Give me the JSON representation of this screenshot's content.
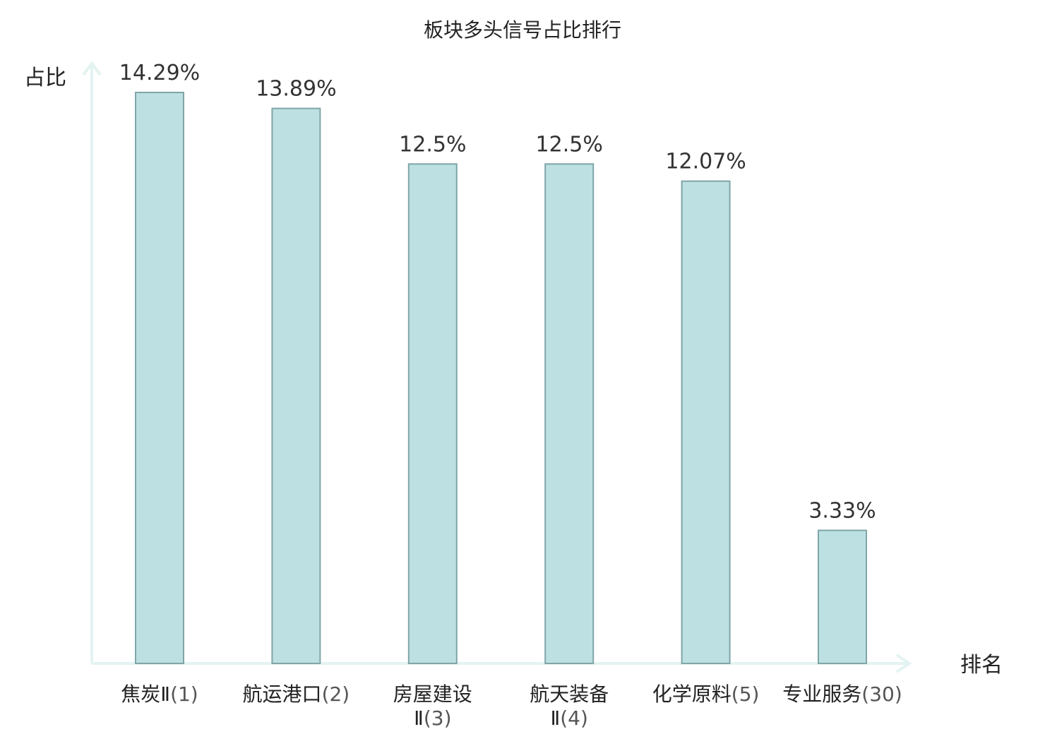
{
  "chart_data": {
    "type": "bar",
    "title": "板块多头信号占比排行",
    "ylabel": "占比",
    "xlabel": "排名",
    "ylim": [
      0,
      14.29
    ],
    "grid": false,
    "categories": [
      {
        "name_lines": [
          "焦炭Ⅱ"
        ],
        "rank": "(1)",
        "highlight": false
      },
      {
        "name_lines": [
          "航运港口"
        ],
        "rank": "(2)",
        "highlight": false
      },
      {
        "name_lines": [
          "房屋建设",
          "Ⅱ"
        ],
        "rank": "(3)",
        "highlight": false
      },
      {
        "name_lines": [
          "航天装备",
          "Ⅱ"
        ],
        "rank": "(4)",
        "highlight": false
      },
      {
        "name_lines": [
          "化学原料"
        ],
        "rank": "(5)",
        "highlight": false
      },
      {
        "name_lines": [
          "专业服务"
        ],
        "rank": "(30)",
        "highlight": true
      }
    ],
    "values": [
      14.29,
      13.89,
      12.5,
      12.5,
      12.07,
      3.33
    ],
    "value_labels": [
      "14.29%",
      "13.89%",
      "12.5%",
      "12.5%",
      "12.07%",
      "3.33%"
    ],
    "colors": {
      "bar_fill": "#bde0e3",
      "bar_stroke": "#7fa5a8",
      "axis": "#e3f3f1",
      "highlight_text": "#e02020"
    }
  }
}
